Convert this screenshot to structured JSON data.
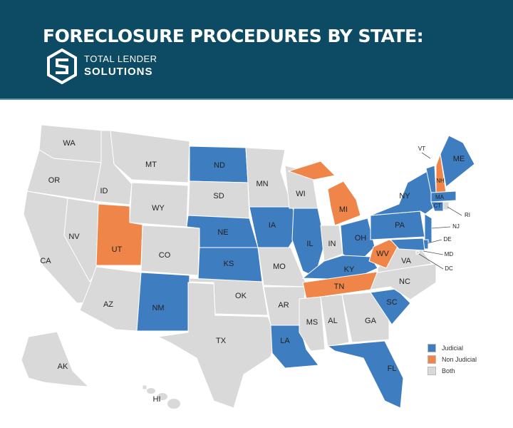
{
  "header": {
    "title": "FORECLOSURE PROCEDURES BY STATE:",
    "brand_line1": "TOTAL LENDER",
    "brand_line2": "SOLUTIONS",
    "background": "#0d4a63"
  },
  "colors": {
    "judicial": "#3f7dc1",
    "non_judicial": "#ef8548",
    "both": "#d9d9d9"
  },
  "legend": [
    {
      "key": "judicial",
      "label": "Judicial"
    },
    {
      "key": "non_judicial",
      "label": "Non Judicial"
    },
    {
      "key": "both",
      "label": "Both"
    }
  ],
  "states": [
    {
      "abbr": "WA",
      "type": "both"
    },
    {
      "abbr": "OR",
      "type": "both"
    },
    {
      "abbr": "CA",
      "type": "both"
    },
    {
      "abbr": "NV",
      "type": "both"
    },
    {
      "abbr": "ID",
      "type": "both"
    },
    {
      "abbr": "MT",
      "type": "both"
    },
    {
      "abbr": "WY",
      "type": "both"
    },
    {
      "abbr": "UT",
      "type": "non_judicial"
    },
    {
      "abbr": "CO",
      "type": "both"
    },
    {
      "abbr": "AZ",
      "type": "both"
    },
    {
      "abbr": "NM",
      "type": "judicial"
    },
    {
      "abbr": "ND",
      "type": "judicial"
    },
    {
      "abbr": "SD",
      "type": "both"
    },
    {
      "abbr": "NE",
      "type": "judicial"
    },
    {
      "abbr": "KS",
      "type": "judicial"
    },
    {
      "abbr": "OK",
      "type": "both"
    },
    {
      "abbr": "TX",
      "type": "both"
    },
    {
      "abbr": "MN",
      "type": "both"
    },
    {
      "abbr": "IA",
      "type": "judicial"
    },
    {
      "abbr": "MO",
      "type": "both"
    },
    {
      "abbr": "AR",
      "type": "both"
    },
    {
      "abbr": "LA",
      "type": "judicial"
    },
    {
      "abbr": "WI",
      "type": "both"
    },
    {
      "abbr": "IL",
      "type": "judicial"
    },
    {
      "abbr": "MI",
      "type": "non_judicial"
    },
    {
      "abbr": "IN",
      "type": "both"
    },
    {
      "abbr": "OH",
      "type": "judicial"
    },
    {
      "abbr": "KY",
      "type": "judicial"
    },
    {
      "abbr": "TN",
      "type": "non_judicial"
    },
    {
      "abbr": "MS",
      "type": "both"
    },
    {
      "abbr": "AL",
      "type": "both"
    },
    {
      "abbr": "GA",
      "type": "both"
    },
    {
      "abbr": "FL",
      "type": "judicial"
    },
    {
      "abbr": "SC",
      "type": "judicial"
    },
    {
      "abbr": "NC",
      "type": "both"
    },
    {
      "abbr": "VA",
      "type": "both"
    },
    {
      "abbr": "WV",
      "type": "non_judicial"
    },
    {
      "abbr": "PA",
      "type": "judicial"
    },
    {
      "abbr": "NY",
      "type": "judicial"
    },
    {
      "abbr": "NJ",
      "type": "judicial"
    },
    {
      "abbr": "DE",
      "type": "judicial"
    },
    {
      "abbr": "MD",
      "type": "judicial"
    },
    {
      "abbr": "DC",
      "type": "both"
    },
    {
      "abbr": "VT",
      "type": "judicial"
    },
    {
      "abbr": "NH",
      "type": "non_judicial"
    },
    {
      "abbr": "ME",
      "type": "judicial"
    },
    {
      "abbr": "MA",
      "type": "judicial"
    },
    {
      "abbr": "CT",
      "type": "judicial"
    },
    {
      "abbr": "RI",
      "type": "both"
    },
    {
      "abbr": "AK",
      "type": "both"
    },
    {
      "abbr": "HI",
      "type": "both"
    }
  ]
}
